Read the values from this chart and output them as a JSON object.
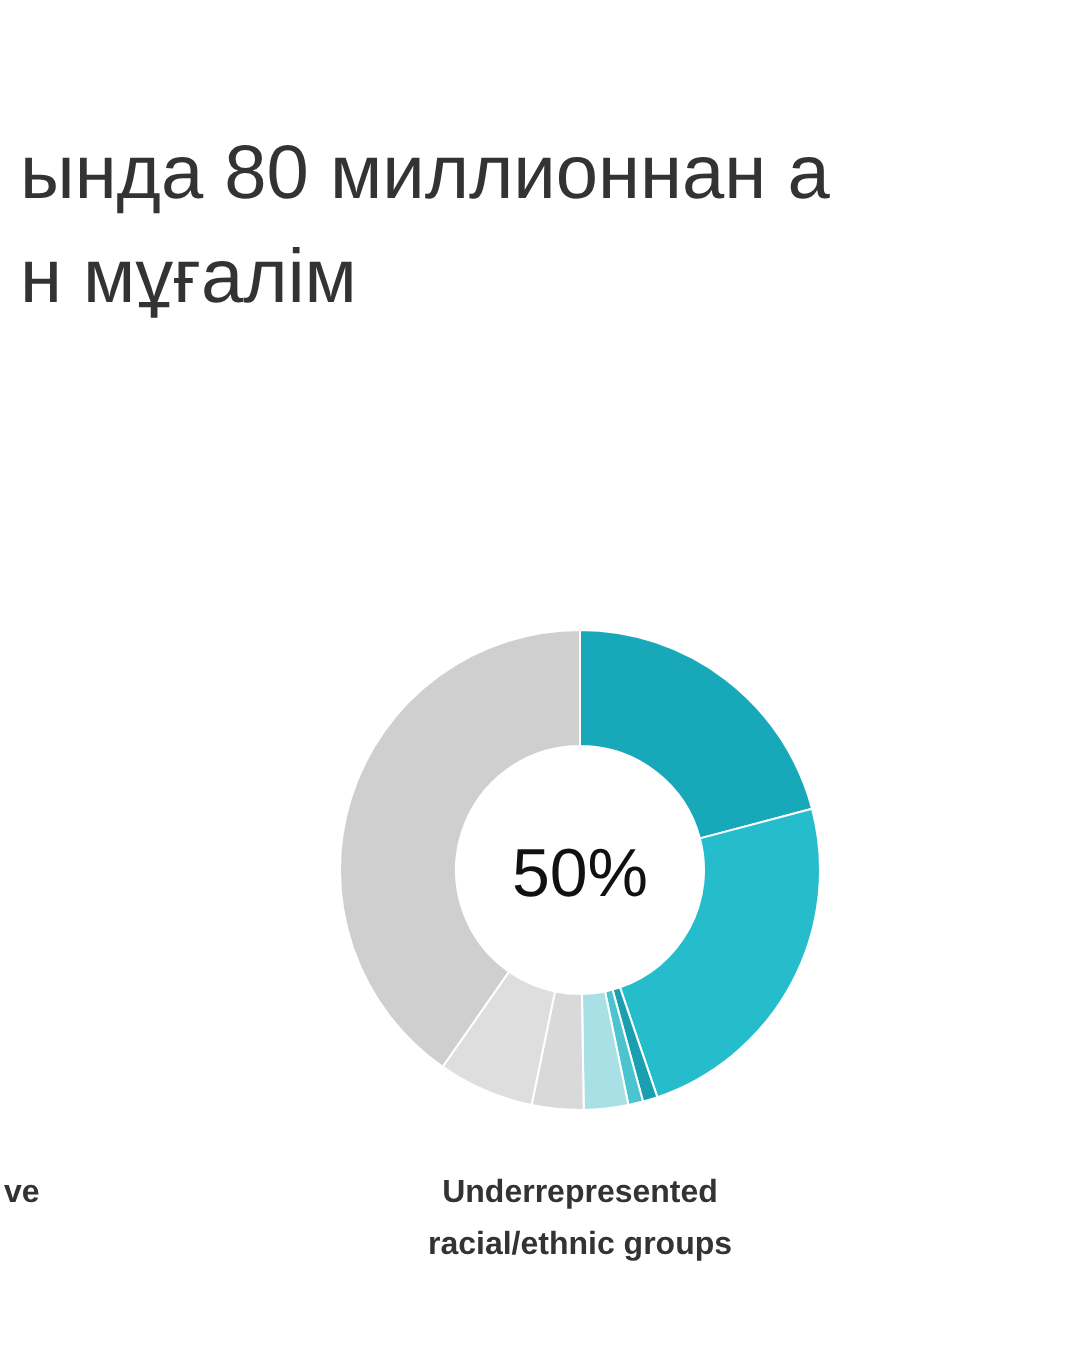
{
  "chart_data": {
    "type": "donut",
    "title": "ында 80 миллионнан а\nн мұғалім",
    "categories": [
      null,
      null,
      null,
      null,
      null,
      null,
      null,
      null
    ],
    "values": [
      21,
      24,
      1,
      1,
      3,
      3.5,
      6.5,
      40.5
    ],
    "colors": [
      "#17a9b9",
      "#25bccb",
      "#1a9fb0",
      "#4cc4d0",
      "#a8e0e6",
      "#d9d9d9",
      "#dedede",
      "#cfcfcf"
    ],
    "annotations": [
      "50%",
      "Underrepresented\nracial/ethnic groups",
      "ve"
    ]
  }
}
